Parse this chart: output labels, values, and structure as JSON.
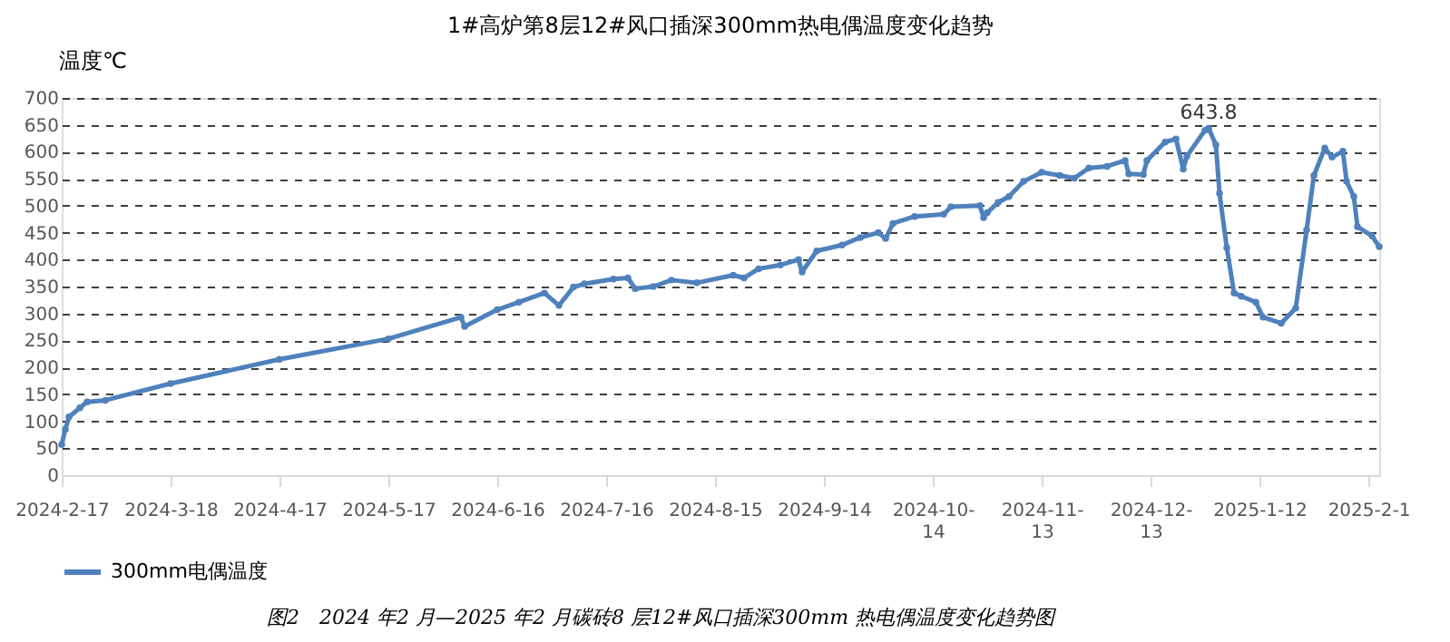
{
  "chart_data": {
    "type": "line",
    "title": "1#高炉第8层12#风口插深300mm热电偶温度变化趋势",
    "ylabel": "温度℃",
    "x": [
      "2024-02-17",
      "2024-02-18",
      "2024-02-19",
      "2024-02-22",
      "2024-02-24",
      "2024-02-29",
      "2024-03-18",
      "2024-04-17",
      "2024-05-17",
      "2024-06-06",
      "2024-06-07",
      "2024-06-16",
      "2024-06-22",
      "2024-06-29",
      "2024-07-03",
      "2024-07-07",
      "2024-07-10",
      "2024-07-18",
      "2024-07-22",
      "2024-07-24",
      "2024-07-29",
      "2024-08-03",
      "2024-08-10",
      "2024-08-20",
      "2024-08-23",
      "2024-08-27",
      "2024-09-02",
      "2024-09-07",
      "2024-09-08",
      "2024-09-12",
      "2024-09-19",
      "2024-09-24",
      "2024-09-29",
      "2024-10-01",
      "2024-10-03",
      "2024-10-09",
      "2024-10-17",
      "2024-10-19",
      "2024-10-27",
      "2024-10-28",
      "2024-10-29",
      "2024-11-01",
      "2024-11-04",
      "2024-11-08",
      "2024-11-13",
      "2024-11-18",
      "2024-11-22",
      "2024-11-26",
      "2024-12-01",
      "2024-12-06",
      "2024-12-07",
      "2024-12-11",
      "2024-12-12",
      "2024-12-17",
      "2024-12-20",
      "2024-12-22",
      "2024-12-23",
      "2024-12-28",
      "2024-12-29",
      "2024-12-31",
      "2025-01-01",
      "2025-01-03",
      "2025-01-05",
      "2025-01-07",
      "2025-01-11",
      "2025-01-13",
      "2025-01-18",
      "2025-01-22",
      "2025-01-25",
      "2025-01-27",
      "2025-01-30",
      "2025-02-01",
      "2025-02-04",
      "2025-02-05",
      "2025-02-07",
      "2025-02-08",
      "2025-02-12",
      "2025-02-14"
    ],
    "series": [
      {
        "name": "300mm电偶温度",
        "color": "#4f81bd",
        "values": [
          57,
          85,
          108,
          125,
          136,
          139,
          170,
          215,
          253,
          293,
          276,
          307,
          321,
          338,
          315,
          349,
          355,
          364,
          366,
          346,
          350,
          362,
          357,
          371,
          366,
          383,
          390,
          400,
          377,
          416,
          427,
          441,
          450,
          439,
          467,
          480,
          484,
          498,
          500,
          478,
          487,
          506,
          517,
          545,
          562,
          556,
          551,
          570,
          573,
          584,
          559,
          558,
          584,
          618,
          624,
          568,
          592,
          640,
          643.8,
          613,
          523,
          422,
          338,
          332,
          321,
          293,
          282,
          310,
          455,
          556,
          607,
          590,
          601,
          545,
          517,
          461,
          444,
          424
        ]
      }
    ],
    "xlim": [
      "2024-02-17",
      "2025-02-14"
    ],
    "xticks": [
      {
        "value": "2024-02-17",
        "label": "2024-2-17"
      },
      {
        "value": "2024-03-18",
        "label": "2024-3-18"
      },
      {
        "value": "2024-04-17",
        "label": "2024-4-17"
      },
      {
        "value": "2024-05-17",
        "label": "2024-5-17"
      },
      {
        "value": "2024-06-16",
        "label": "2024-6-16"
      },
      {
        "value": "2024-07-16",
        "label": "2024-7-16"
      },
      {
        "value": "2024-08-15",
        "label": "2024-8-15"
      },
      {
        "value": "2024-09-14",
        "label": "2024-9-14"
      },
      {
        "value": "2024-10-14",
        "label": "2024-10-14"
      },
      {
        "value": "2024-11-13",
        "label": "2024-11-13"
      },
      {
        "value": "2024-12-13",
        "label": "2024-12-13"
      },
      {
        "value": "2025-01-12",
        "label": "2025-1-12"
      },
      {
        "value": "2025-02-11",
        "label": "2025-2-1"
      }
    ],
    "ylim": [
      0,
      700
    ],
    "yticks": [
      0,
      50,
      100,
      150,
      200,
      250,
      300,
      350,
      400,
      450,
      500,
      550,
      600,
      650,
      700
    ],
    "grid": "y",
    "legend": "bottom",
    "marker": "circle",
    "line_style": "solid",
    "annotations": [
      {
        "text": "643.8",
        "x": "2024-12-29",
        "y": 643.8
      },
      "图2　2024 年2 月—2025 年2 月碳砖8 层12#风口插深300mm 热电偶温度变化趋势图"
    ]
  }
}
